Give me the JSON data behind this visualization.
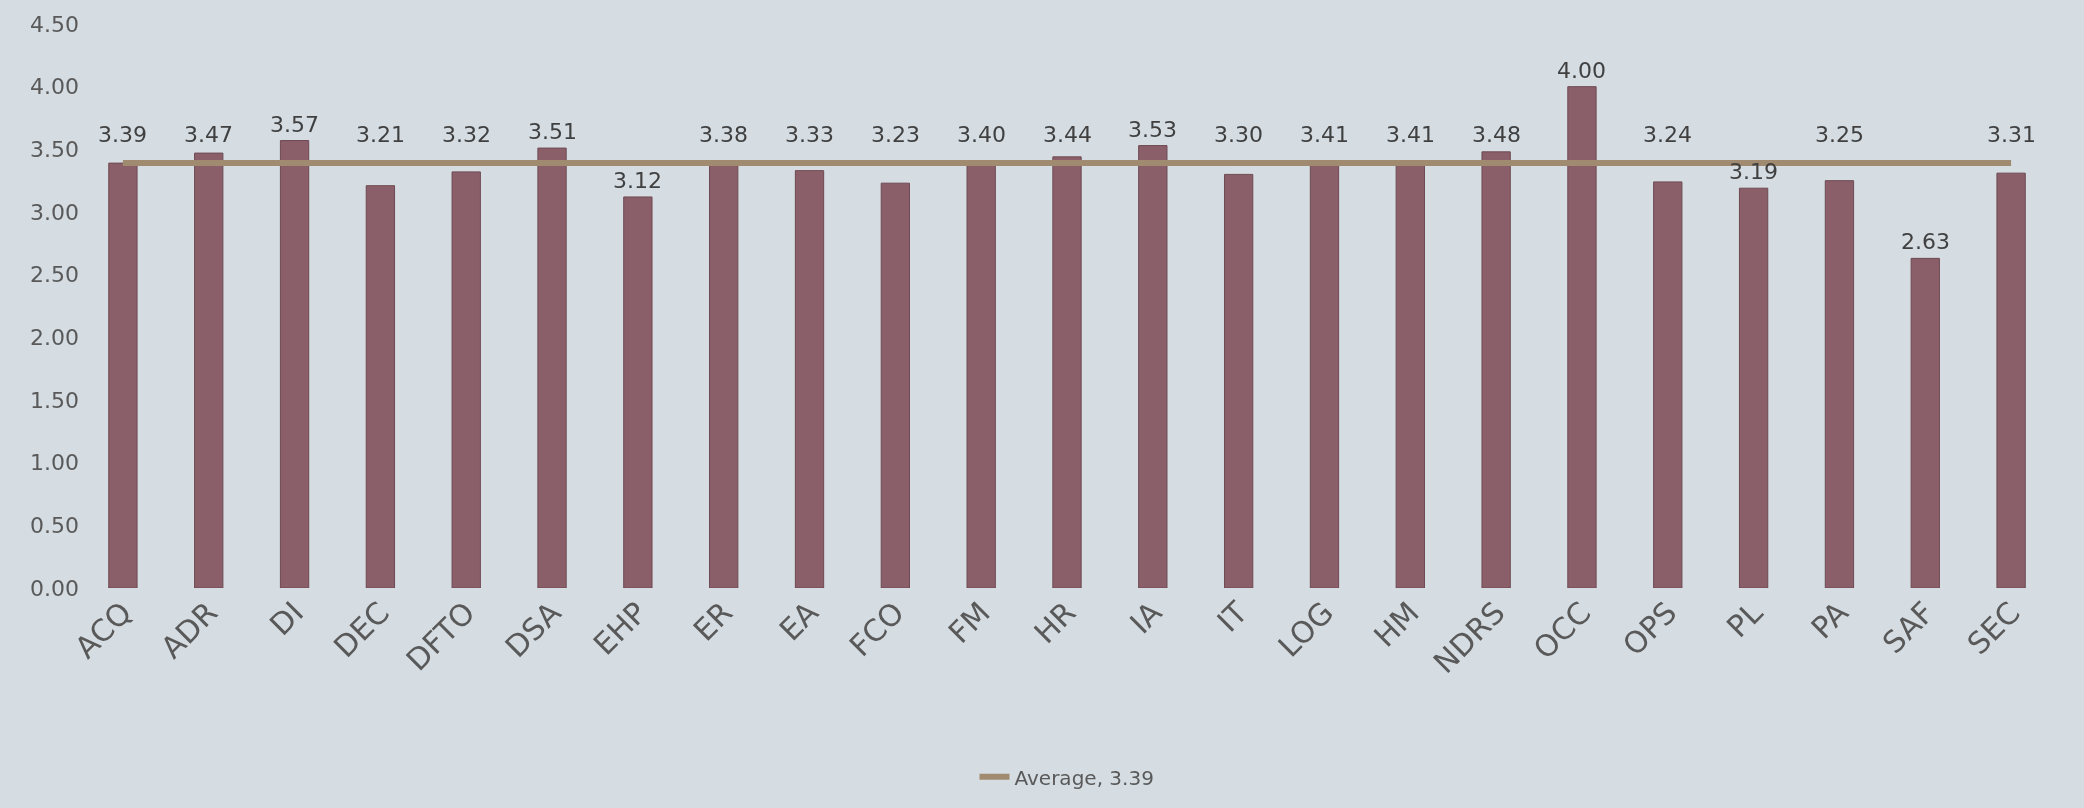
{
  "chart_data": {
    "type": "bar",
    "categories": [
      "ACQ",
      "ADR",
      "DI",
      "DEC",
      "DFTO",
      "DSA",
      "EHP",
      "ER",
      "EA",
      "FCO",
      "FM",
      "HR",
      "IA",
      "IT",
      "LOG",
      "HM",
      "NDRS",
      "OCC",
      "OPS",
      "PL",
      "PA",
      "SAF",
      "SEC"
    ],
    "series": [
      {
        "color": "#8b5f69",
        "values": [
          3.39,
          3.47,
          3.57,
          3.21,
          3.32,
          3.51,
          3.12,
          3.38,
          3.33,
          3.23,
          3.4,
          3.44,
          3.53,
          3.3,
          3.41,
          3.41,
          3.48,
          4.0,
          3.24,
          3.19,
          3.25,
          2.63,
          3.31
        ],
        "value_labels": [
          "3.39",
          "3.47",
          "3.57",
          "3.21",
          "3.32",
          "3.51",
          "3.12",
          "3.38",
          "3.33",
          "3.23",
          "3.40",
          "3.44",
          "3.53",
          "3.30",
          "3.41",
          "3.41",
          "3.48",
          "4.00",
          "3.24",
          "3.19",
          "3.25",
          "2.63",
          "3.31"
        ]
      },
      {
        "type": "line",
        "name": "Average, 3.39",
        "color": "#a08b70",
        "values": [
          3.39,
          3.39,
          3.39,
          3.39,
          3.39,
          3.39,
          3.39,
          3.39,
          3.39,
          3.39,
          3.39,
          3.39,
          3.39,
          3.39,
          3.39,
          3.39,
          3.39,
          3.39,
          3.39,
          3.39,
          3.39,
          3.39,
          3.39
        ]
      }
    ],
    "ylim": [
      0,
      4.5
    ],
    "yticks": [
      {
        "value": 0,
        "label": "0.00"
      },
      {
        "value": 0.5,
        "label": "0.50"
      },
      {
        "value": 1,
        "label": "1.00"
      },
      {
        "value": 1.5,
        "label": "1.50"
      },
      {
        "value": 2,
        "label": "2.00"
      },
      {
        "value": 2.5,
        "label": "2.50"
      },
      {
        "value": 3,
        "label": "3.00"
      },
      {
        "value": 3.5,
        "label": "3.50"
      },
      {
        "value": 4,
        "label": "4.00"
      },
      {
        "value": 4.5,
        "label": "4.50"
      }
    ],
    "grid": false,
    "legend": "bottom",
    "marker": "none",
    "line_style": "solid"
  }
}
